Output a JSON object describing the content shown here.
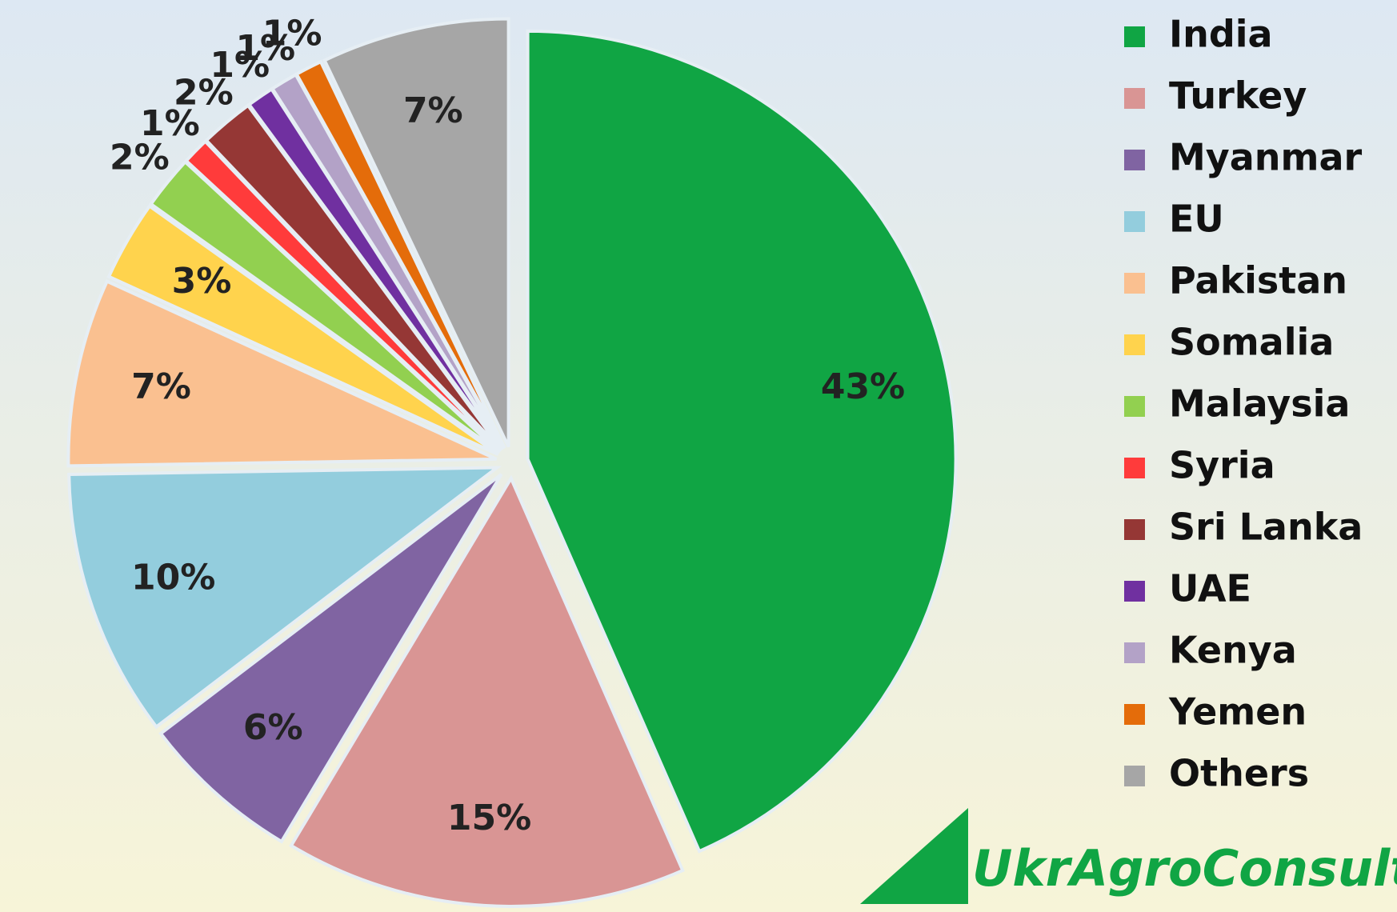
{
  "chart_data": {
    "type": "pie",
    "categories": [
      "India",
      "Turkey",
      "Myanmar",
      "EU",
      "Pakistan",
      "Somalia",
      "Malaysia",
      "Syria",
      "Sri Lanka",
      "UAE",
      "Kenya",
      "Yemen",
      "Others"
    ],
    "values": [
      43,
      15,
      6,
      10,
      7,
      3,
      2,
      1,
      2,
      1,
      1,
      1,
      7
    ],
    "value_labels": [
      "43%",
      "15%",
      "6%",
      "10%",
      "7%",
      "3%",
      "2%",
      "1%",
      "2%",
      "1%",
      "1%",
      "1%",
      "7%"
    ],
    "colors": [
      "#10a544",
      "#d99594",
      "#8064a2",
      "#93cddd",
      "#fac090",
      "#ffd34d",
      "#92d050",
      "#ff3b3b",
      "#953735",
      "#7030a0",
      "#b3a2c7",
      "#e46c0a",
      "#a6a6a6"
    ],
    "legend": "right",
    "logo": "UkrAgroConsult"
  }
}
